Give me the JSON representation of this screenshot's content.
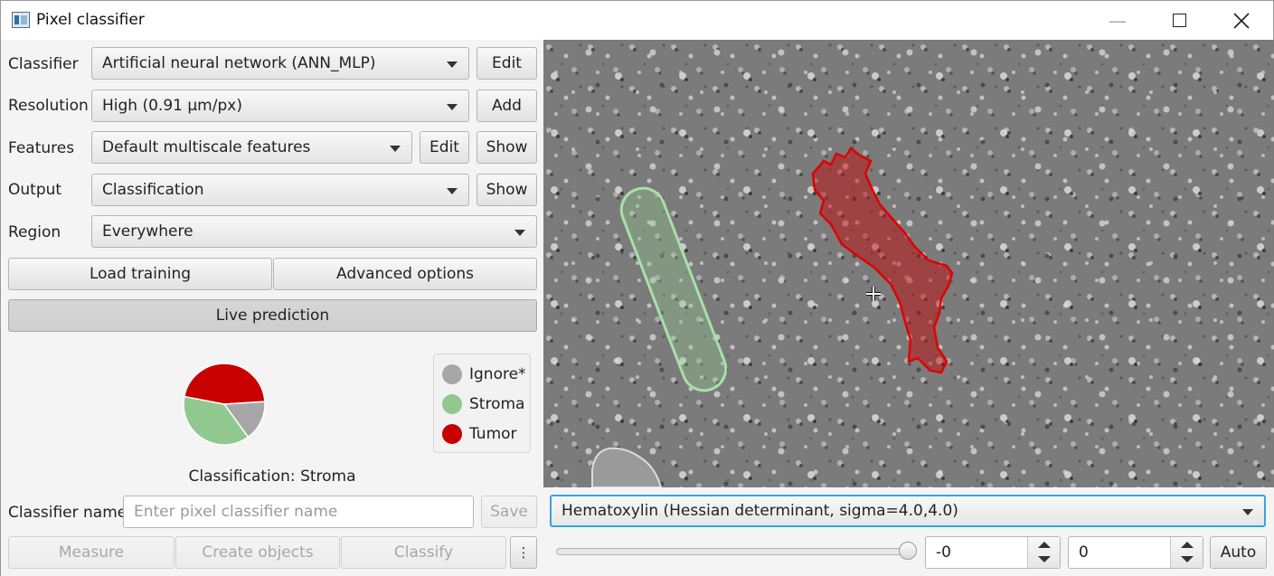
{
  "window": {
    "title": "Pixel classifier"
  },
  "rows": {
    "classifier": {
      "label": "Classifier",
      "value": "Artificial neural network (ANN_MLP)",
      "button": "Edit"
    },
    "resolution": {
      "label": "Resolution",
      "value": "High (0.91 µm/px)",
      "button": "Add"
    },
    "features": {
      "label": "Features",
      "value": "Default multiscale features",
      "button_edit": "Edit",
      "button_show": "Show"
    },
    "output": {
      "label": "Output",
      "value": "Classification",
      "button": "Show"
    },
    "region": {
      "label": "Region",
      "value": "Everywhere"
    }
  },
  "buttons": {
    "load_training": "Load training",
    "advanced_options": "Advanced options",
    "live_prediction": "Live prediction",
    "save": "Save",
    "measure": "Measure",
    "create_objects": "Create objects",
    "classify": "Classify",
    "more": "⋮",
    "auto": "Auto"
  },
  "legend": [
    {
      "label": "Ignore*",
      "color": "#a7a7a7"
    },
    {
      "label": "Stroma",
      "color": "#90c890"
    },
    {
      "label": "Tumor",
      "color": "#c80000"
    }
  ],
  "pie": {
    "slices": [
      {
        "name": "Tumor",
        "fraction": 0.46,
        "color": "#c80000"
      },
      {
        "name": "Ignore*",
        "fraction": 0.16,
        "color": "#a7a7a7"
      },
      {
        "name": "Stroma",
        "fraction": 0.38,
        "color": "#90c890"
      }
    ]
  },
  "classification_text": "Classification: Stroma",
  "classifier_name": {
    "label": "Classifier name",
    "placeholder": "Enter pixel classifier name",
    "value": ""
  },
  "viewer": {
    "feature_selected": "Hematoxylin (Hessian determinant, sigma=4.0,4.0)",
    "min_value": "-0",
    "max_value": "0",
    "slider_fraction": 1.0
  }
}
